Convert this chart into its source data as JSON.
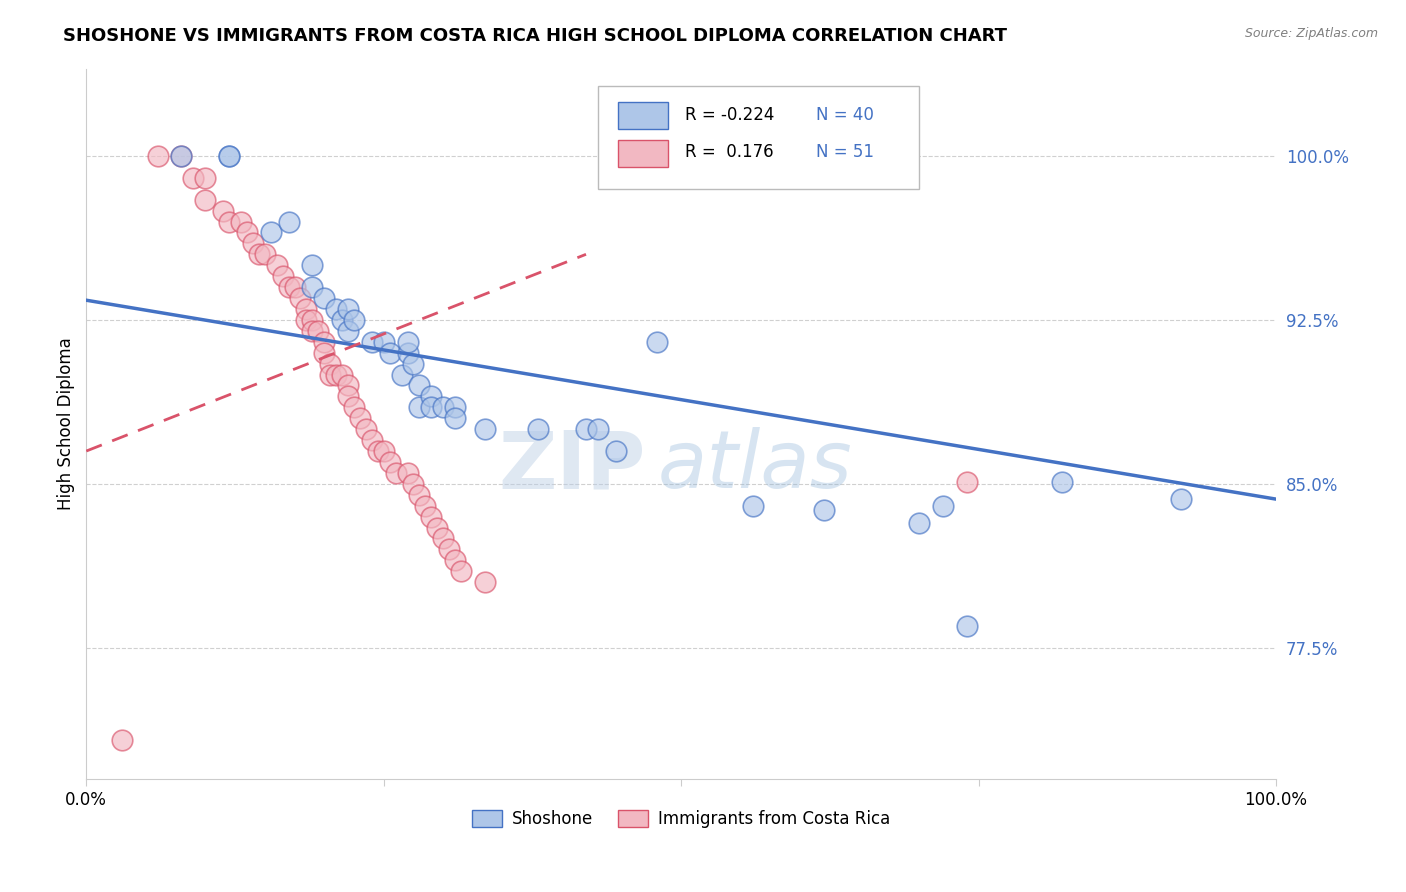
{
  "title": "SHOSHONE VS IMMIGRANTS FROM COSTA RICA HIGH SCHOOL DIPLOMA CORRELATION CHART",
  "source": "Source: ZipAtlas.com",
  "ylabel": "High School Diploma",
  "ytick_labels": [
    "77.5%",
    "85.0%",
    "92.5%",
    "100.0%"
  ],
  "ytick_values": [
    0.775,
    0.85,
    0.925,
    1.0
  ],
  "xlim": [
    0.0,
    1.0
  ],
  "ylim": [
    0.715,
    1.04
  ],
  "legend_blue_r": "-0.224",
  "legend_blue_n": "40",
  "legend_pink_r": "0.176",
  "legend_pink_n": "51",
  "blue_color": "#aec6e8",
  "pink_color": "#f2b8c2",
  "blue_line_color": "#4472C4",
  "pink_line_color": "#d9536a",
  "watermark_zip": "ZIP",
  "watermark_atlas": "atlas",
  "shoshone_x": [
    0.08,
    0.12,
    0.12,
    0.155,
    0.17,
    0.19,
    0.19,
    0.2,
    0.21,
    0.215,
    0.22,
    0.22,
    0.225,
    0.24,
    0.25,
    0.255,
    0.265,
    0.27,
    0.27,
    0.275,
    0.28,
    0.28,
    0.29,
    0.29,
    0.3,
    0.31,
    0.31,
    0.335,
    0.38,
    0.42,
    0.43,
    0.445,
    0.48,
    0.56,
    0.62,
    0.7,
    0.72,
    0.74,
    0.82,
    0.92
  ],
  "shoshone_y": [
    1.0,
    1.0,
    1.0,
    0.965,
    0.97,
    0.95,
    0.94,
    0.935,
    0.93,
    0.925,
    0.93,
    0.92,
    0.925,
    0.915,
    0.915,
    0.91,
    0.9,
    0.91,
    0.915,
    0.905,
    0.895,
    0.885,
    0.89,
    0.885,
    0.885,
    0.885,
    0.88,
    0.875,
    0.875,
    0.875,
    0.875,
    0.865,
    0.915,
    0.84,
    0.838,
    0.832,
    0.84,
    0.785,
    0.851,
    0.843
  ],
  "costarica_x": [
    0.03,
    0.06,
    0.08,
    0.09,
    0.1,
    0.1,
    0.115,
    0.12,
    0.13,
    0.135,
    0.14,
    0.145,
    0.15,
    0.16,
    0.165,
    0.17,
    0.175,
    0.18,
    0.185,
    0.185,
    0.19,
    0.19,
    0.195,
    0.2,
    0.2,
    0.205,
    0.205,
    0.21,
    0.215,
    0.22,
    0.22,
    0.225,
    0.23,
    0.235,
    0.24,
    0.245,
    0.25,
    0.255,
    0.26,
    0.27,
    0.275,
    0.28,
    0.285,
    0.29,
    0.295,
    0.3,
    0.305,
    0.31,
    0.315,
    0.335,
    0.74
  ],
  "costarica_y": [
    0.733,
    1.0,
    1.0,
    0.99,
    0.99,
    0.98,
    0.975,
    0.97,
    0.97,
    0.965,
    0.96,
    0.955,
    0.955,
    0.95,
    0.945,
    0.94,
    0.94,
    0.935,
    0.93,
    0.925,
    0.925,
    0.92,
    0.92,
    0.915,
    0.91,
    0.905,
    0.9,
    0.9,
    0.9,
    0.895,
    0.89,
    0.885,
    0.88,
    0.875,
    0.87,
    0.865,
    0.865,
    0.86,
    0.855,
    0.855,
    0.85,
    0.845,
    0.84,
    0.835,
    0.83,
    0.825,
    0.82,
    0.815,
    0.81,
    0.805,
    0.851
  ],
  "blue_trend_x": [
    0.0,
    1.0
  ],
  "blue_trend_y": [
    0.934,
    0.843
  ],
  "pink_trend_x": [
    0.0,
    0.42
  ],
  "pink_trend_y": [
    0.865,
    0.955
  ]
}
